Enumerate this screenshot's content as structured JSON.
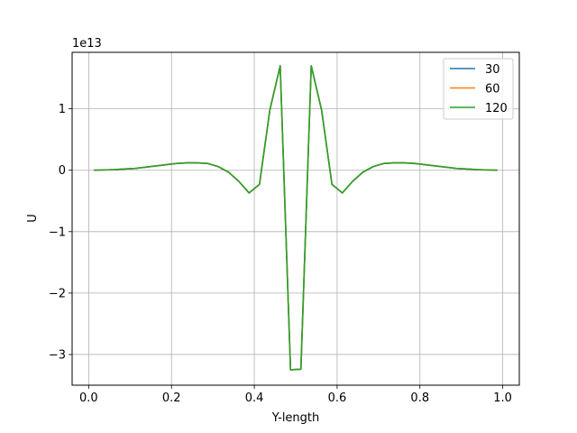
{
  "chart_data": {
    "type": "line",
    "xlabel": "Y-length",
    "ylabel": "U",
    "offset_text": "1e13",
    "xlim": [
      -0.04,
      1.04
    ],
    "ylim": [
      -3.5,
      1.92
    ],
    "xticks": [
      0.0,
      0.2,
      0.4,
      0.6,
      0.8,
      1.0
    ],
    "xtick_labels": [
      "0.0",
      "0.2",
      "0.4",
      "0.6",
      "0.8",
      "1.0"
    ],
    "yticks": [
      1,
      0,
      -1,
      -2,
      -3
    ],
    "ytick_labels": [
      "1",
      "0",
      "−1",
      "−2",
      "−3"
    ],
    "grid": true,
    "legend_position": "top-right",
    "x": [
      0.0125,
      0.0375,
      0.0625,
      0.0875,
      0.1125,
      0.1375,
      0.1625,
      0.1875,
      0.2125,
      0.2375,
      0.2625,
      0.2875,
      0.3125,
      0.3375,
      0.3625,
      0.3875,
      0.4125,
      0.4375,
      0.4625,
      0.4875,
      0.5125,
      0.5375,
      0.5625,
      0.5875,
      0.6125,
      0.6375,
      0.6625,
      0.6875,
      0.7125,
      0.7375,
      0.7625,
      0.7875,
      0.8125,
      0.8375,
      0.8625,
      0.8875,
      0.9125,
      0.9375,
      0.9625,
      0.9875
    ],
    "series": [
      {
        "name": "30",
        "color": "#1f77b4",
        "values": [
          0.0,
          0.005,
          0.01,
          0.02,
          0.03,
          0.05,
          0.07,
          0.09,
          0.11,
          0.12,
          0.12,
          0.11,
          0.06,
          -0.03,
          -0.18,
          -0.37,
          -0.23,
          0.98,
          1.7,
          -3.25,
          -3.24,
          1.7,
          0.98,
          -0.23,
          -0.37,
          -0.18,
          -0.03,
          0.06,
          0.11,
          0.12,
          0.12,
          0.11,
          0.09,
          0.07,
          0.05,
          0.03,
          0.02,
          0.01,
          0.005,
          0.0
        ]
      },
      {
        "name": "60",
        "color": "#ff7f0e",
        "values": [
          0.0,
          0.005,
          0.01,
          0.02,
          0.03,
          0.05,
          0.07,
          0.09,
          0.11,
          0.12,
          0.12,
          0.11,
          0.06,
          -0.03,
          -0.18,
          -0.37,
          -0.23,
          0.98,
          1.7,
          -3.25,
          -3.24,
          1.7,
          0.98,
          -0.23,
          -0.37,
          -0.18,
          -0.03,
          0.06,
          0.11,
          0.12,
          0.12,
          0.11,
          0.09,
          0.07,
          0.05,
          0.03,
          0.02,
          0.01,
          0.005,
          0.0
        ]
      },
      {
        "name": "120",
        "color": "#2ca02c",
        "values": [
          0.0,
          0.005,
          0.01,
          0.02,
          0.03,
          0.05,
          0.07,
          0.09,
          0.11,
          0.12,
          0.12,
          0.11,
          0.06,
          -0.03,
          -0.18,
          -0.37,
          -0.23,
          0.98,
          1.7,
          -3.25,
          -3.24,
          1.7,
          0.98,
          -0.23,
          -0.37,
          -0.18,
          -0.03,
          0.06,
          0.11,
          0.12,
          0.12,
          0.11,
          0.09,
          0.07,
          0.05,
          0.03,
          0.02,
          0.01,
          0.005,
          0.0
        ]
      }
    ]
  }
}
